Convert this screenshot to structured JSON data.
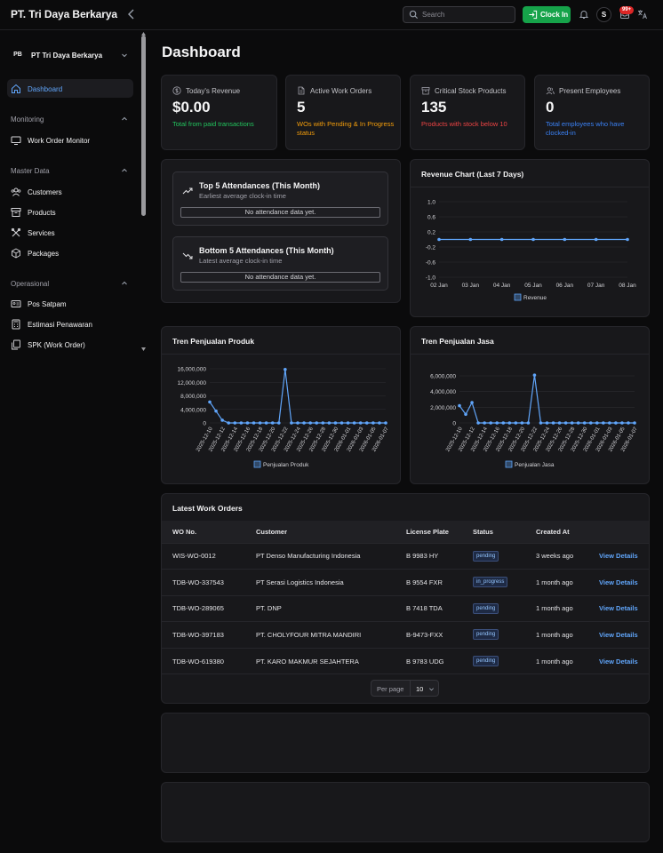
{
  "topbar": {
    "brand": "PT. Tri Daya Berkarya",
    "search_placeholder": "Search",
    "clock_in_label": "Clock In",
    "avatar_initial": "S",
    "notification_badge": "99+"
  },
  "sidebar": {
    "team_initials": "PB",
    "team_name": "PT Tri Daya Berkarya",
    "dashboard": "Dashboard",
    "groups": [
      {
        "label": "Monitoring",
        "items": [
          "Work Order Monitor"
        ]
      },
      {
        "label": "Master Data",
        "items": [
          "Customers",
          "Products",
          "Services",
          "Packages"
        ]
      },
      {
        "label": "Operasional",
        "items": [
          "Pos Satpam",
          "Estimasi Penawaran",
          "SPK (Work Order)"
        ]
      }
    ]
  },
  "main": {
    "title": "Dashboard",
    "stats": [
      {
        "label": "Today's Revenue",
        "value": "$0.00",
        "desc": "Total from paid transactions",
        "color": "#22c55e"
      },
      {
        "label": "Active Work Orders",
        "value": "5",
        "desc": "WOs with Pending & In Progress status",
        "color": "#f59e0b"
      },
      {
        "label": "Critical Stock Products",
        "value": "135",
        "desc": "Products with stock below 10",
        "color": "#ef4444"
      },
      {
        "label": "Present Employees",
        "value": "0",
        "desc": "Total employees who have clocked-in",
        "color": "#3b82f6"
      }
    ],
    "attendance": {
      "top_title": "Top 5 Attendances (This Month)",
      "top_sub": "Earliest average clock-in time",
      "top_empty": "No attendance data yet.",
      "bottom_title": "Bottom 5 Attendances (This Month)",
      "bottom_sub": "Latest average clock-in time",
      "bottom_empty": "No attendance data yet."
    },
    "work_orders": {
      "title": "Latest Work Orders",
      "columns": [
        "WO No.",
        "Customer",
        "License Plate",
        "Status",
        "Created At"
      ],
      "rows": [
        {
          "wo": "WIS-WO-0012",
          "customer": "PT Denso Manufacturing Indonesia",
          "plate": "B 9983 HY",
          "status": "pending",
          "created": "3 weeks ago",
          "action": "View Details"
        },
        {
          "wo": "TDB-WO-337543",
          "customer": "PT Serasi Logistics Indonesia",
          "plate": "B 9554 FXR",
          "status": "in_progress",
          "created": "1 month ago",
          "action": "View Details"
        },
        {
          "wo": "TDB-WO-289065",
          "customer": "PT. DNP",
          "plate": "B 7418 TDA",
          "status": "pending",
          "created": "1 month ago",
          "action": "View Details"
        },
        {
          "wo": "TDB-WO-397183",
          "customer": "PT. CHOLYFOUR MITRA MANDIRI",
          "plate": "B-9473-FXX",
          "status": "pending",
          "created": "1 month ago",
          "action": "View Details"
        },
        {
          "wo": "TDB-WO-619380",
          "customer": "PT. KARO MAKMUR SEJAHTERA",
          "plate": "B 9783 UDG",
          "status": "pending",
          "created": "1 month ago",
          "action": "View Details"
        }
      ],
      "per_page_label": "Per page",
      "per_page_value": "10"
    }
  },
  "chart_data": [
    {
      "type": "line",
      "title": "Revenue Chart (Last 7 Days)",
      "x": [
        "02 Jan",
        "03 Jan",
        "04 Jan",
        "05 Jan",
        "06 Jan",
        "07 Jan",
        "08 Jan"
      ],
      "series": [
        {
          "name": "Revenue",
          "values": [
            0,
            0,
            0,
            0,
            0,
            0,
            0
          ]
        }
      ],
      "ylim": [
        -1.0,
        1.0
      ],
      "yticks": [
        "1.0",
        "0.6",
        "0.2",
        "-0.2",
        "-0.6",
        "-1.0"
      ],
      "color": "#60a5fa"
    },
    {
      "type": "line",
      "title": "Tren Penjualan Produk",
      "x": [
        "2025-12-10",
        "2025-12-11",
        "2025-12-12",
        "2025-12-13",
        "2025-12-14",
        "2025-12-15",
        "2025-12-16",
        "2025-12-17",
        "2025-12-18",
        "2025-12-19",
        "2025-12-20",
        "2025-12-21",
        "2025-12-22",
        "2025-12-23",
        "2025-12-24",
        "2025-12-25",
        "2025-12-26",
        "2025-12-27",
        "2025-12-28",
        "2025-12-29",
        "2025-12-30",
        "2025-12-31",
        "2026-01-01",
        "2026-01-02",
        "2026-01-03",
        "2026-01-04",
        "2026-01-05",
        "2026-01-06",
        "2026-01-07"
      ],
      "x_tick_labels": [
        "2025-12-10",
        "2025-12-12",
        "2025-12-14",
        "2025-12-16",
        "2025-12-18",
        "2025-12-20",
        "2025-12-22",
        "2025-12-24",
        "2025-12-26",
        "2025-12-28",
        "2025-12-30",
        "2026-01-01",
        "2026-01-03",
        "2026-01-05",
        "2026-01-07"
      ],
      "series": [
        {
          "name": "Penjualan Produk",
          "values": [
            6200000,
            3500000,
            800000,
            0,
            0,
            0,
            0,
            0,
            0,
            0,
            0,
            0,
            15800000,
            0,
            0,
            0,
            0,
            0,
            0,
            0,
            0,
            0,
            0,
            0,
            0,
            0,
            0,
            0,
            0
          ]
        }
      ],
      "ylim": [
        0,
        16000000
      ],
      "yticks": [
        "16,000,000",
        "12,000,000",
        "8,000,000",
        "4,000,000",
        "0"
      ],
      "color": "#60a5fa"
    },
    {
      "type": "line",
      "title": "Tren Penjualan Jasa",
      "x": [
        "2025-12-10",
        "2025-12-11",
        "2025-12-12",
        "2025-12-13",
        "2025-12-14",
        "2025-12-15",
        "2025-12-16",
        "2025-12-17",
        "2025-12-18",
        "2025-12-19",
        "2025-12-20",
        "2025-12-21",
        "2025-12-22",
        "2025-12-23",
        "2025-12-24",
        "2025-12-25",
        "2025-12-26",
        "2025-12-27",
        "2025-12-28",
        "2025-12-29",
        "2025-12-30",
        "2025-12-31",
        "2026-01-01",
        "2026-01-02",
        "2026-01-03",
        "2026-01-04",
        "2026-01-05",
        "2026-01-06",
        "2026-01-07"
      ],
      "x_tick_labels": [
        "2025-12-10",
        "2025-12-12",
        "2025-12-14",
        "2025-12-16",
        "2025-12-18",
        "2025-12-20",
        "2025-12-22",
        "2025-12-24",
        "2025-12-26",
        "2025-12-28",
        "2025-12-30",
        "2026-01-01",
        "2026-01-03",
        "2026-01-05",
        "2026-01-07"
      ],
      "series": [
        {
          "name": "Penjualan Jasa",
          "values": [
            2200000,
            1100000,
            2600000,
            0,
            0,
            0,
            0,
            0,
            0,
            0,
            0,
            0,
            6100000,
            0,
            0,
            0,
            0,
            0,
            0,
            0,
            0,
            0,
            0,
            0,
            0,
            0,
            0,
            0,
            0
          ]
        }
      ],
      "ylim": [
        0,
        6000000
      ],
      "yticks": [
        "6,000,000",
        "4,000,000",
        "2,000,000",
        "0"
      ],
      "color": "#60a5fa"
    }
  ]
}
